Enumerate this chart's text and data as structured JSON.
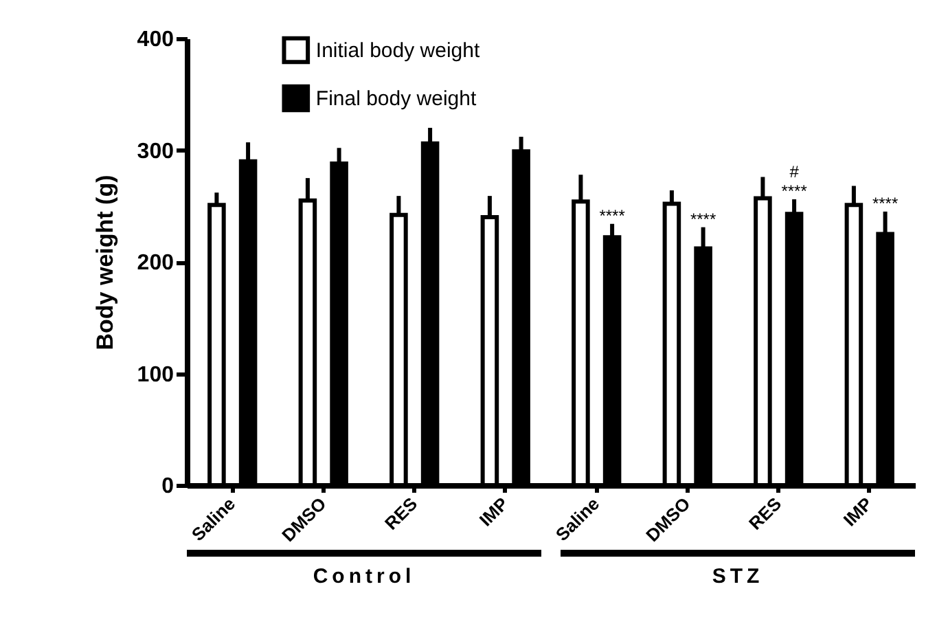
{
  "chart_data": {
    "type": "bar",
    "ylabel": "Body weight (g)",
    "categories": [
      "Saline",
      "DMSO",
      "RES",
      "IMP",
      "Saline",
      "DMSO",
      "RES",
      "IMP"
    ],
    "series": [
      {
        "name": "Initial body weight",
        "color": "#ffffff",
        "values": [
          251,
          255,
          242,
          240,
          254,
          252,
          257,
          251
        ],
        "errors": [
          [
            251,
            262
          ],
          [
            255,
            275
          ],
          [
            242,
            259
          ],
          [
            240,
            259
          ],
          [
            254,
            278
          ],
          [
            252,
            264
          ],
          [
            257,
            276
          ],
          [
            251,
            268
          ]
        ]
      },
      {
        "name": "Final body weight",
        "color": "#000000",
        "values": [
          290,
          288,
          306,
          299,
          222,
          212,
          243,
          225
        ],
        "errors": [
          [
            290,
            307
          ],
          [
            288,
            302
          ],
          [
            306,
            320
          ],
          [
            299,
            312
          ],
          [
            222,
            234
          ],
          [
            212,
            231
          ],
          [
            243,
            256
          ],
          [
            225,
            245
          ]
        ]
      }
    ],
    "ylim": [
      0,
      400
    ],
    "yticks": [
      0,
      100,
      200,
      300,
      400
    ],
    "grid": false,
    "legend": "top",
    "annotations": [
      "****",
      "****",
      "****",
      "#",
      "****",
      "Control",
      "STZ"
    ]
  }
}
